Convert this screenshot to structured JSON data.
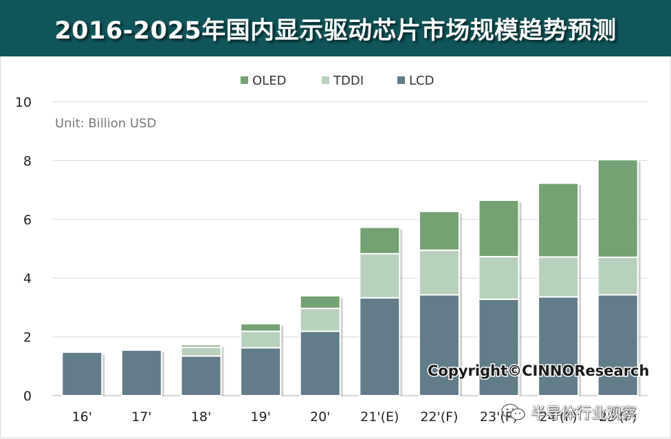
{
  "title": "2016-2025年国内显示驱动芯片市场规模趋势预测",
  "copyright": "Copyright©CINNOResearch",
  "watermark": "半导体行业观察",
  "colors": {
    "title_bg": "#0f5559",
    "oled": "#74a272",
    "tddi": "#b8d1bd",
    "lcd": "#617d89"
  },
  "chart_data": {
    "type": "bar",
    "stacked": true,
    "unit_label": "Unit: Billion USD",
    "categories": [
      "16'",
      "17'",
      "18'",
      "19'",
      "20'",
      "21'(E)",
      "22'(F)",
      "23'(F)",
      "24'(F)",
      "25'(F)"
    ],
    "series": [
      {
        "name": "LCD",
        "color": "#617d89",
        "values": [
          1.48,
          1.55,
          1.35,
          1.63,
          2.19,
          3.33,
          3.43,
          3.28,
          3.36,
          3.43
        ]
      },
      {
        "name": "TDDI",
        "color": "#b8d1bd",
        "values": [
          0.0,
          0.0,
          0.3,
          0.56,
          0.78,
          1.5,
          1.52,
          1.45,
          1.36,
          1.28
        ]
      },
      {
        "name": "OLED",
        "color": "#74a272",
        "values": [
          0.0,
          0.0,
          0.08,
          0.26,
          0.43,
          0.9,
          1.32,
          1.92,
          2.51,
          3.32
        ]
      }
    ],
    "legend_order": [
      "OLED",
      "TDDI",
      "LCD"
    ],
    "legend_position": "top-center",
    "ylim": [
      0,
      10
    ],
    "yticks": [
      0,
      2,
      4,
      6,
      8,
      10
    ],
    "grid": true
  }
}
